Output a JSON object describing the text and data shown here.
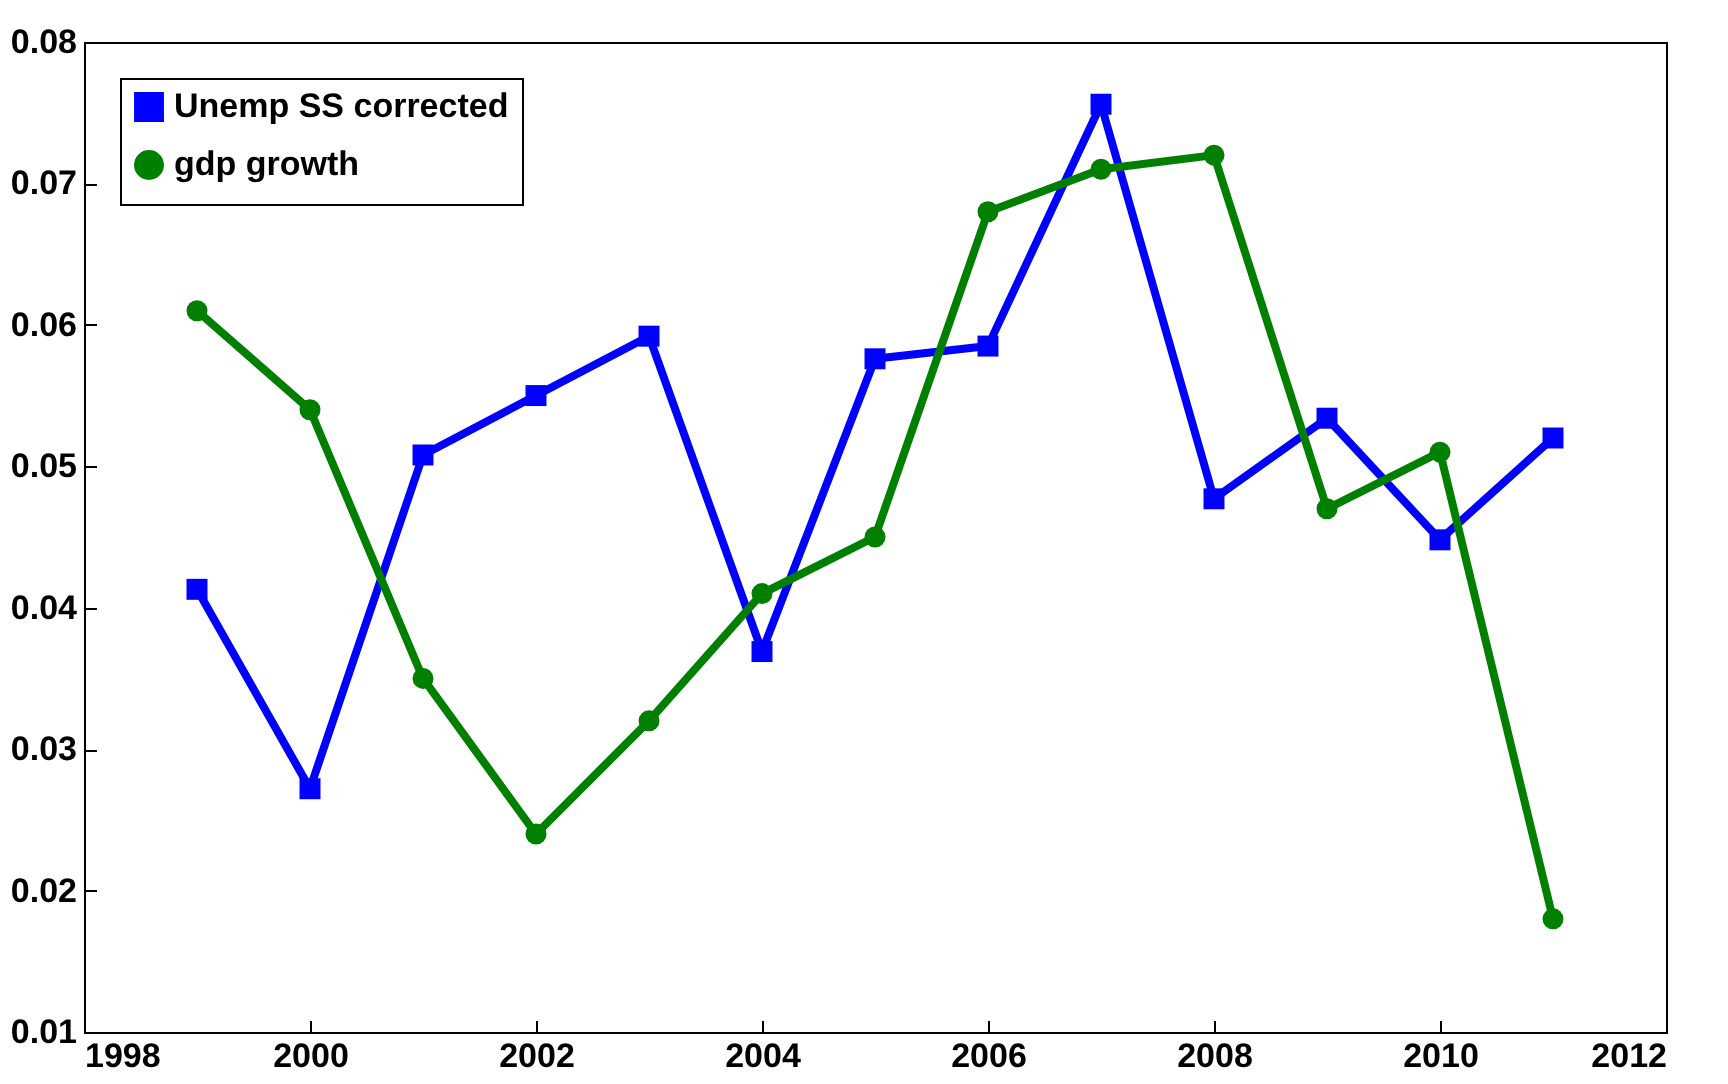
{
  "chart_data": {
    "type": "line",
    "x": [
      1999,
      2000,
      2001,
      2002,
      2003,
      2004,
      2005,
      2006,
      2007,
      2008,
      2009,
      2010,
      2011
    ],
    "series": [
      {
        "name": "Unemp SS corrected",
        "color": "#0000ff",
        "marker": "square",
        "values": [
          0.0413,
          0.0272,
          0.0508,
          0.055,
          0.0592,
          0.0369,
          0.0576,
          0.0585,
          0.0756,
          0.0477,
          0.0534,
          0.0448,
          0.052
        ]
      },
      {
        "name": "gdp growth",
        "color": "#007f00",
        "marker": "circle",
        "values": [
          0.061,
          0.054,
          0.035,
          0.024,
          0.032,
          0.041,
          0.045,
          0.068,
          0.071,
          0.072,
          0.047,
          0.051,
          0.018
        ]
      }
    ],
    "xlim": [
      1998,
      2012
    ],
    "xticks": [
      1998,
      2000,
      2002,
      2004,
      2006,
      2008,
      2010,
      2012
    ],
    "ylim": [
      0.01,
      0.08
    ],
    "yticks": [
      0.01,
      0.02,
      0.03,
      0.04,
      0.05,
      0.06,
      0.07,
      0.08
    ],
    "grid": false,
    "legend": "top left",
    "line_style": "solid"
  }
}
